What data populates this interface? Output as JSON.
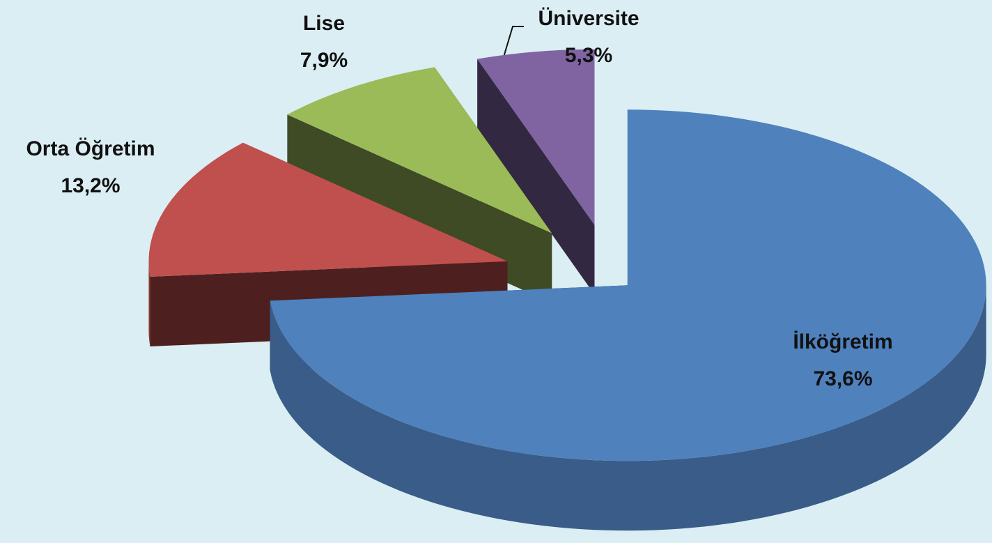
{
  "chart_data": {
    "type": "pie3d",
    "categories": [
      "İlköğretim",
      "Orta Öğretim",
      "Lise",
      "Üniversite"
    ],
    "values": [
      73.6,
      13.2,
      7.9,
      5.3
    ],
    "value_labels": [
      "73,6%",
      "13,2%",
      "7,9%",
      "5,3%"
    ],
    "colors": [
      "#4f81bd",
      "#c0504d",
      "#9bbb59",
      "#8064a2"
    ]
  }
}
